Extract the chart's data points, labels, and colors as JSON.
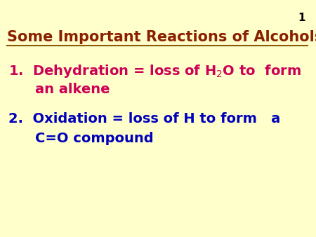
{
  "background_color": "#ffffcc",
  "slide_number": "1",
  "slide_number_color": "#000000",
  "slide_number_fontsize": 11,
  "title_text": "Some Important Reactions of Alcohols",
  "title_color": "#8b2000",
  "title_fontsize": 15,
  "title_underline_color": "#8b5a00",
  "point1_line1": "1.  Dehydration = loss of H$_2$O to  form",
  "point1_line2": "an alkene",
  "point1_color": "#cc0055",
  "point1_fontsize": 14,
  "point2_line1": "2.  Oxidation = loss of H to form   a",
  "point2_line2": "C=O compound",
  "point2_color": "#0000bb",
  "point2_fontsize": 14
}
